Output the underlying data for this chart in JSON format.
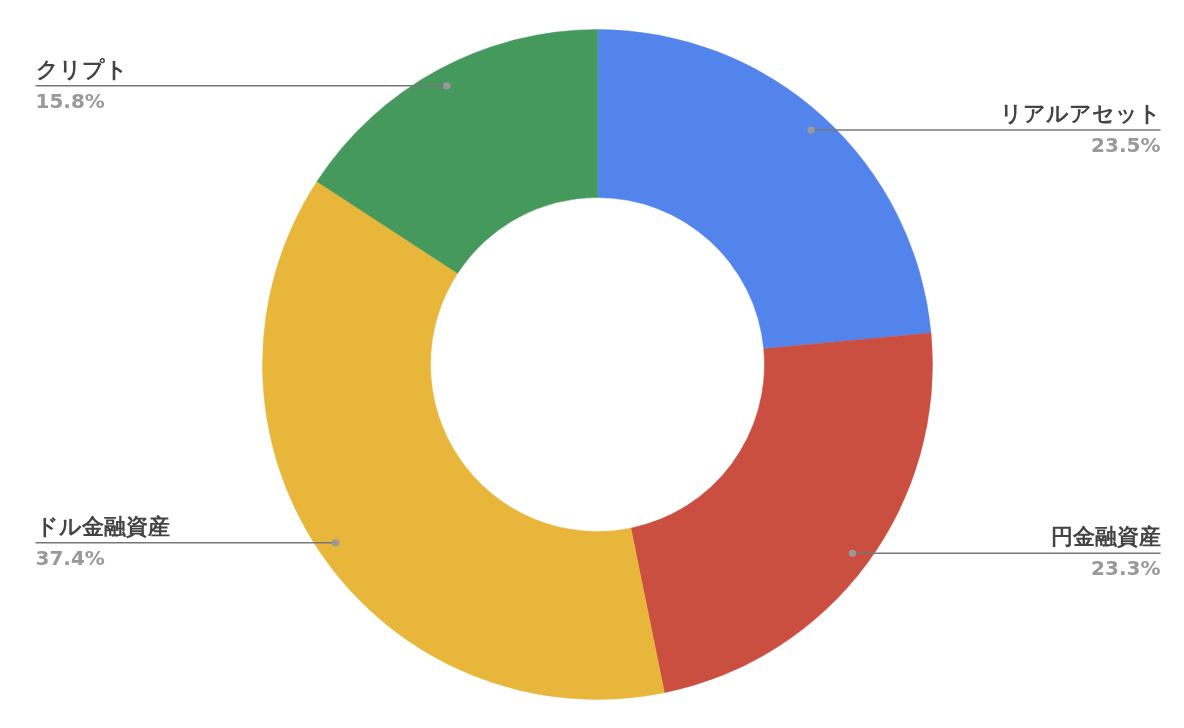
{
  "chart_data": {
    "type": "donut",
    "categories": [
      "リアルアセット",
      "円金融資産",
      "ドル金融資産",
      "クリプト"
    ],
    "values": [
      23.5,
      23.3,
      37.4,
      15.8
    ],
    "colors": [
      "#5384ec",
      "#cb4f40",
      "#e9b63c",
      "#46995c"
    ],
    "value_labels": [
      "23.5%",
      "23.3%",
      "37.4%",
      "15.8%"
    ]
  }
}
